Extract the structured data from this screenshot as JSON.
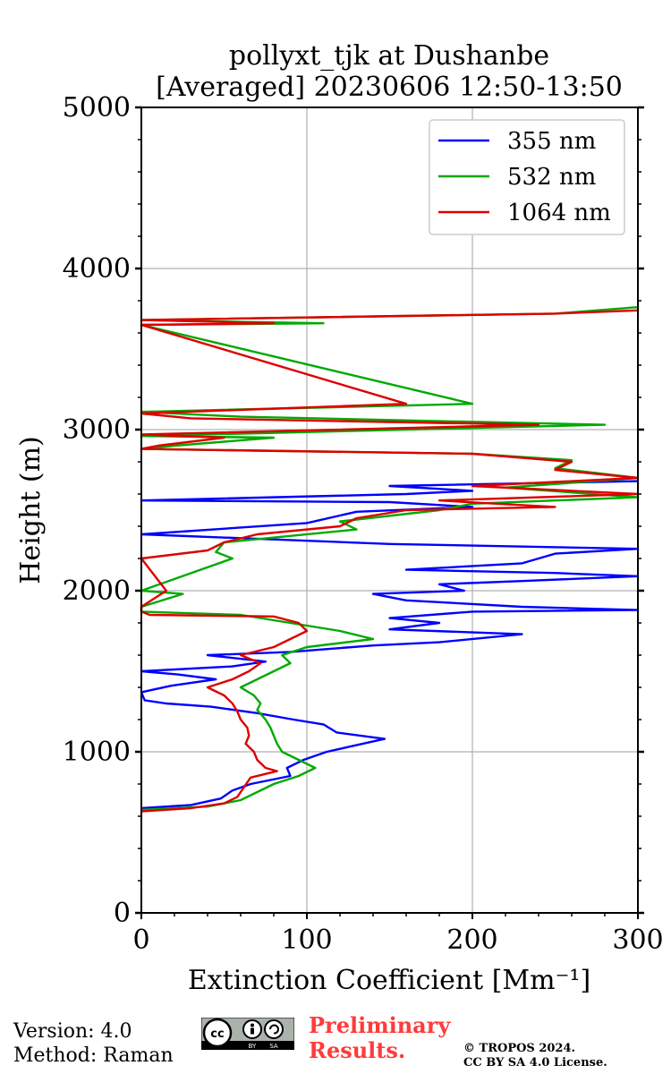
{
  "chart_data": {
    "type": "line",
    "title_line1": "pollyxt_tjk at Dushanbe",
    "title_line2": "[Averaged] 20230606 12:50-13:50",
    "xlabel": "Extinction Coefficient [Mm⁻¹]",
    "ylabel": "Height (m)",
    "xlim": [
      0,
      300
    ],
    "ylim": [
      0,
      5000
    ],
    "xticks": [
      0,
      100,
      200,
      300
    ],
    "yticks": [
      0,
      1000,
      2000,
      3000,
      4000,
      5000
    ],
    "x_minor_step": 20,
    "y_minor_step": 200,
    "grid": true,
    "legend_position": "top-right",
    "series": [
      {
        "name": "355 nm",
        "color": "#0000ff",
        "points": [
          [
            0,
            650
          ],
          [
            30,
            670
          ],
          [
            48,
            710
          ],
          [
            55,
            760
          ],
          [
            66,
            800
          ],
          [
            90,
            850
          ],
          [
            88,
            900
          ],
          [
            98,
            950
          ],
          [
            112,
            1000
          ],
          [
            125,
            1030
          ],
          [
            147,
            1080
          ],
          [
            118,
            1120
          ],
          [
            110,
            1170
          ],
          [
            92,
            1200
          ],
          [
            70,
            1240
          ],
          [
            42,
            1280
          ],
          [
            15,
            1300
          ],
          [
            2,
            1320
          ],
          [
            0,
            1370
          ],
          [
            18,
            1410
          ],
          [
            45,
            1450
          ],
          [
            22,
            1480
          ],
          [
            0,
            1500
          ],
          [
            55,
            1530
          ],
          [
            75,
            1560
          ],
          [
            40,
            1600
          ],
          [
            90,
            1620
          ],
          [
            140,
            1660
          ],
          [
            180,
            1680
          ],
          [
            230,
            1730
          ],
          [
            150,
            1760
          ],
          [
            180,
            1800
          ],
          [
            150,
            1830
          ],
          [
            200,
            1870
          ],
          [
            300,
            1880
          ],
          [
            230,
            1900
          ],
          [
            160,
            1940
          ],
          [
            140,
            1980
          ],
          [
            195,
            2000
          ],
          [
            180,
            2040
          ],
          [
            230,
            2060
          ],
          [
            300,
            2090
          ],
          [
            250,
            2110
          ],
          [
            160,
            2130
          ],
          [
            230,
            2170
          ],
          [
            250,
            2230
          ],
          [
            300,
            2260
          ],
          [
            150,
            2290
          ],
          [
            0,
            2350
          ],
          [
            100,
            2420
          ],
          [
            130,
            2490
          ],
          [
            200,
            2520
          ],
          [
            150,
            2550
          ],
          [
            0,
            2560
          ],
          [
            160,
            2600
          ],
          [
            200,
            2620
          ],
          [
            150,
            2650
          ],
          [
            300,
            2680
          ]
        ]
      },
      {
        "name": "532 nm",
        "color": "#00aa00",
        "points": [
          [
            0,
            640
          ],
          [
            40,
            660
          ],
          [
            60,
            700
          ],
          [
            70,
            750
          ],
          [
            80,
            800
          ],
          [
            95,
            850
          ],
          [
            105,
            900
          ],
          [
            95,
            950
          ],
          [
            85,
            1000
          ],
          [
            82,
            1050
          ],
          [
            80,
            1100
          ],
          [
            78,
            1150
          ],
          [
            75,
            1200
          ],
          [
            70,
            1260
          ],
          [
            72,
            1300
          ],
          [
            68,
            1350
          ],
          [
            60,
            1400
          ],
          [
            70,
            1450
          ],
          [
            80,
            1500
          ],
          [
            90,
            1550
          ],
          [
            85,
            1600
          ],
          [
            100,
            1650
          ],
          [
            140,
            1700
          ],
          [
            120,
            1750
          ],
          [
            90,
            1800
          ],
          [
            60,
            1850
          ],
          [
            0,
            1870
          ],
          [
            0,
            1900
          ],
          [
            25,
            1980
          ],
          [
            0,
            2000
          ],
          [
            55,
            2200
          ],
          [
            45,
            2240
          ],
          [
            50,
            2300
          ],
          [
            90,
            2340
          ],
          [
            130,
            2380
          ],
          [
            120,
            2430
          ],
          [
            180,
            2500
          ],
          [
            200,
            2540
          ],
          [
            300,
            2580
          ],
          [
            220,
            2640
          ],
          [
            300,
            2700
          ],
          [
            250,
            2760
          ],
          [
            260,
            2810
          ],
          [
            200,
            2850
          ],
          [
            0,
            2880
          ],
          [
            20,
            2900
          ],
          [
            80,
            2950
          ],
          [
            0,
            2960
          ],
          [
            280,
            3030
          ],
          [
            60,
            3080
          ],
          [
            0,
            3110
          ],
          [
            200,
            3160
          ],
          [
            0,
            3650
          ],
          [
            110,
            3660
          ],
          [
            0,
            3680
          ],
          [
            250,
            3720
          ],
          [
            300,
            3760
          ]
        ]
      },
      {
        "name": "1064 nm",
        "color": "#dd0000",
        "points": [
          [
            0,
            630
          ],
          [
            30,
            650
          ],
          [
            50,
            680
          ],
          [
            58,
            720
          ],
          [
            62,
            780
          ],
          [
            66,
            840
          ],
          [
            82,
            880
          ],
          [
            75,
            900
          ],
          [
            70,
            950
          ],
          [
            68,
            1000
          ],
          [
            63,
            1050
          ],
          [
            65,
            1100
          ],
          [
            64,
            1150
          ],
          [
            60,
            1200
          ],
          [
            58,
            1250
          ],
          [
            55,
            1300
          ],
          [
            50,
            1350
          ],
          [
            40,
            1400
          ],
          [
            55,
            1450
          ],
          [
            65,
            1500
          ],
          [
            72,
            1550
          ],
          [
            60,
            1600
          ],
          [
            80,
            1650
          ],
          [
            90,
            1700
          ],
          [
            100,
            1750
          ],
          [
            95,
            1800
          ],
          [
            80,
            1840
          ],
          [
            5,
            1850
          ],
          [
            0,
            1870
          ],
          [
            0,
            1900
          ],
          [
            15,
            2000
          ],
          [
            0,
            2200
          ],
          [
            40,
            2250
          ],
          [
            50,
            2300
          ],
          [
            70,
            2350
          ],
          [
            120,
            2400
          ],
          [
            130,
            2450
          ],
          [
            160,
            2500
          ],
          [
            250,
            2520
          ],
          [
            180,
            2560
          ],
          [
            300,
            2600
          ],
          [
            200,
            2650
          ],
          [
            300,
            2700
          ],
          [
            250,
            2750
          ],
          [
            260,
            2800
          ],
          [
            200,
            2850
          ],
          [
            0,
            2880
          ],
          [
            10,
            2900
          ],
          [
            50,
            2950
          ],
          [
            0,
            2970
          ],
          [
            240,
            3030
          ],
          [
            30,
            3070
          ],
          [
            0,
            3100
          ],
          [
            160,
            3160
          ],
          [
            0,
            3650
          ],
          [
            80,
            3660
          ],
          [
            0,
            3680
          ],
          [
            250,
            3720
          ],
          [
            300,
            3740
          ]
        ]
      }
    ]
  },
  "footer": {
    "version": "Version: 4.0",
    "method": "Method: Raman",
    "preliminary_line1": "Preliminary",
    "preliminary_line2": "Results.",
    "copyright_line1": "© TROPOS 2024.",
    "copyright_line2": "CC BY SA 4.0 License.",
    "license_badge": {
      "icon": "creative-commons-icon",
      "text_left": "BY",
      "text_right": "SA"
    }
  }
}
